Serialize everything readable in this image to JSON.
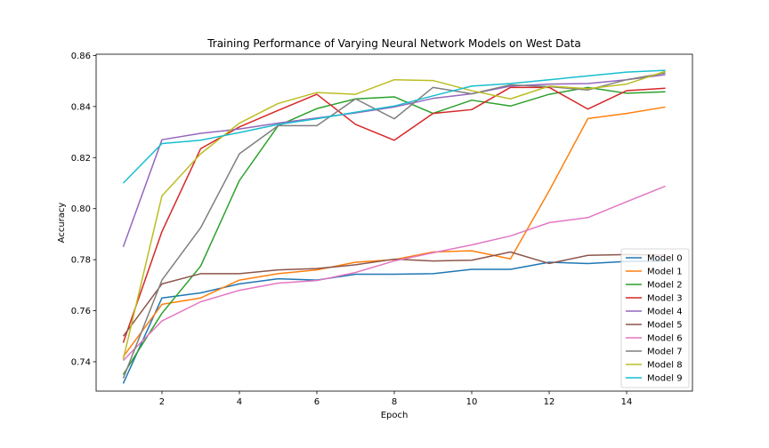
{
  "chart_data": {
    "type": "line",
    "title": "Training Performance of Varying Neural Network Models on West Data",
    "xlabel": "Epoch",
    "ylabel": "Accuracy",
    "xlim": [
      0.3,
      15.7
    ],
    "ylim": [
      0.7285,
      0.8605
    ],
    "xticks": [
      2,
      4,
      6,
      8,
      10,
      12,
      14
    ],
    "yticks": [
      0.74,
      0.76,
      0.78,
      0.8,
      0.82,
      0.84,
      0.86
    ],
    "ytick_labels": [
      "0.74",
      "0.76",
      "0.78",
      "0.80",
      "0.82",
      "0.84",
      "0.86"
    ],
    "grid": false,
    "legend_position": "lower-right",
    "x": [
      1,
      2,
      3,
      4,
      5,
      6,
      7,
      8,
      9,
      10,
      11,
      12,
      13,
      14,
      15
    ],
    "series": [
      {
        "name": "Model 0",
        "color": "#1f77b4",
        "values": [
          0.7315,
          0.765,
          0.767,
          0.7705,
          0.7725,
          0.772,
          0.7743,
          0.7743,
          0.7745,
          0.7762,
          0.7762,
          0.779,
          0.7785,
          0.7793,
          0.7795
        ]
      },
      {
        "name": "Model 1",
        "color": "#ff7f0e",
        "values": [
          0.742,
          0.7625,
          0.765,
          0.772,
          0.7745,
          0.776,
          0.779,
          0.78,
          0.783,
          0.7835,
          0.7803,
          0.807,
          0.8353,
          0.8373,
          0.8398
        ]
      },
      {
        "name": "Model 2",
        "color": "#2ca02c",
        "values": [
          0.735,
          0.759,
          0.7775,
          0.811,
          0.8325,
          0.8392,
          0.843,
          0.8438,
          0.8373,
          0.8425,
          0.8402,
          0.8448,
          0.8475,
          0.8452,
          0.8458
        ]
      },
      {
        "name": "Model 3",
        "color": "#d62728",
        "values": [
          0.7475,
          0.791,
          0.8235,
          0.832,
          0.8385,
          0.8448,
          0.833,
          0.8268,
          0.8373,
          0.8388,
          0.8475,
          0.8475,
          0.839,
          0.8462,
          0.8472
        ]
      },
      {
        "name": "Model 4",
        "color": "#9467bd",
        "values": [
          0.785,
          0.827,
          0.8295,
          0.8312,
          0.8335,
          0.8355,
          0.8375,
          0.8398,
          0.8432,
          0.845,
          0.848,
          0.8488,
          0.849,
          0.8505,
          0.8525
        ]
      },
      {
        "name": "Model 5",
        "color": "#8c564b",
        "values": [
          0.75,
          0.7705,
          0.7745,
          0.7745,
          0.776,
          0.7765,
          0.778,
          0.7802,
          0.7795,
          0.7798,
          0.783,
          0.7785,
          0.7817,
          0.782,
          0.7818
        ]
      },
      {
        "name": "Model 6",
        "color": "#e377c2",
        "values": [
          0.7405,
          0.756,
          0.7635,
          0.768,
          0.7708,
          0.7718,
          0.775,
          0.7795,
          0.7827,
          0.7858,
          0.7893,
          0.7945,
          0.7965,
          0.8027,
          0.8088
        ]
      },
      {
        "name": "Model 7",
        "color": "#7f7f7f",
        "values": [
          0.7335,
          0.772,
          0.7925,
          0.8215,
          0.8325,
          0.8325,
          0.843,
          0.8352,
          0.8475,
          0.845,
          0.8485,
          0.8478,
          0.8465,
          0.8505,
          0.8532
        ]
      },
      {
        "name": "Model 8",
        "color": "#bcbd22",
        "values": [
          0.741,
          0.805,
          0.8215,
          0.8335,
          0.8412,
          0.8455,
          0.8448,
          0.8505,
          0.8502,
          0.8462,
          0.843,
          0.848,
          0.847,
          0.8488,
          0.8538
        ]
      },
      {
        "name": "Model 9",
        "color": "#17becf",
        "values": [
          0.81,
          0.8255,
          0.8268,
          0.8298,
          0.833,
          0.8352,
          0.8378,
          0.8402,
          0.8442,
          0.848,
          0.849,
          0.8505,
          0.852,
          0.8535,
          0.8542
        ]
      }
    ]
  }
}
